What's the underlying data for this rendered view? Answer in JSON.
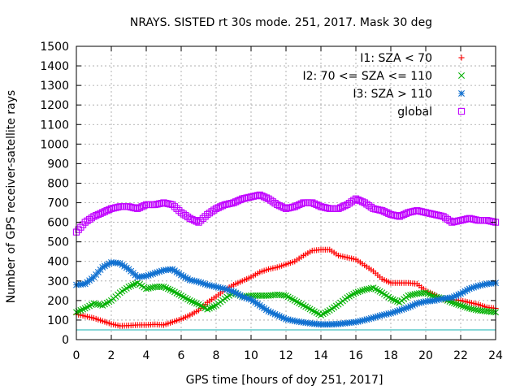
{
  "chart_data": {
    "type": "scatter",
    "title": "NRAYS. SISTED rt 30s mode. 251, 2017. Mask 30 deg",
    "xlabel": "GPS time [hours of doy 251, 2017]",
    "ylabel": "Number of GPS receiver-satellite rays",
    "xlim": [
      0,
      24
    ],
    "ylim": [
      0,
      1500
    ],
    "xticks": [
      "0",
      "2",
      "4",
      "6",
      "8",
      "10",
      "12",
      "14",
      "16",
      "18",
      "20",
      "22",
      "24"
    ],
    "yticks": [
      "0",
      "100",
      "200",
      "300",
      "400",
      "500",
      "600",
      "700",
      "800",
      "900",
      "1000",
      "1100",
      "1200",
      "1300",
      "1400",
      "1500"
    ],
    "grid": true,
    "legend_position": "top-right",
    "reference_line": {
      "y": 50,
      "color": "#40c0c0"
    },
    "series": [
      {
        "name": "I1: SZA < 70",
        "color": "#ff0000",
        "marker": "+",
        "x": [
          0,
          0.5,
          1,
          1.5,
          2,
          2.5,
          3,
          3.5,
          4,
          4.5,
          5,
          5.5,
          6,
          6.5,
          7,
          7.5,
          8,
          8.5,
          9,
          9.5,
          10,
          10.5,
          11,
          11.5,
          12,
          12.5,
          13,
          13.5,
          14,
          14.5,
          15,
          15.5,
          16,
          16.5,
          17,
          17.5,
          18,
          18.5,
          19,
          19.5,
          20,
          20.5,
          21,
          21.5,
          22,
          22.5,
          23,
          23.5,
          24
        ],
        "values": [
          130,
          120,
          110,
          95,
          80,
          70,
          72,
          75,
          75,
          78,
          75,
          90,
          105,
          125,
          150,
          190,
          220,
          255,
          280,
          300,
          320,
          345,
          360,
          370,
          385,
          400,
          430,
          455,
          460,
          460,
          430,
          420,
          410,
          380,
          350,
          310,
          290,
          290,
          290,
          285,
          250,
          230,
          205,
          205,
          200,
          190,
          180,
          165,
          160
        ]
      },
      {
        "name": "I2: 70 <= SZA <= 110",
        "color": "#00b000",
        "marker": "x",
        "x": [
          0,
          0.5,
          1,
          1.5,
          2,
          2.5,
          3,
          3.5,
          4,
          4.5,
          5,
          5.5,
          6,
          6.5,
          7,
          7.5,
          8,
          8.5,
          9,
          9.5,
          10,
          10.5,
          11,
          11.5,
          12,
          12.5,
          13,
          13.5,
          14,
          14.5,
          15,
          15.5,
          16,
          16.5,
          17,
          17.5,
          18,
          18.5,
          19,
          19.5,
          20,
          20.5,
          21,
          21.5,
          22,
          22.5,
          23,
          23.5,
          24
        ],
        "values": [
          140,
          160,
          185,
          175,
          200,
          240,
          270,
          290,
          260,
          270,
          270,
          250,
          225,
          200,
          180,
          155,
          175,
          210,
          240,
          220,
          225,
          225,
          225,
          230,
          225,
          200,
          175,
          150,
          125,
          150,
          180,
          215,
          240,
          255,
          265,
          240,
          210,
          190,
          225,
          235,
          240,
          220,
          210,
          190,
          175,
          160,
          150,
          145,
          140
        ]
      },
      {
        "name": "I3: SZA > 110",
        "color": "#1070d0",
        "marker": "*",
        "x": [
          0,
          0.5,
          1,
          1.5,
          2,
          2.5,
          3,
          3.5,
          4,
          4.5,
          5,
          5.5,
          6,
          6.5,
          7,
          7.5,
          8,
          8.5,
          9,
          9.5,
          10,
          10.5,
          11,
          11.5,
          12,
          12.5,
          13,
          13.5,
          14,
          14.5,
          15,
          15.5,
          16,
          16.5,
          17,
          17.5,
          18,
          18.5,
          19,
          19.5,
          20,
          20.5,
          21,
          21.5,
          22,
          22.5,
          23,
          23.5,
          24
        ],
        "values": [
          280,
          285,
          320,
          370,
          395,
          390,
          360,
          320,
          325,
          340,
          355,
          360,
          330,
          305,
          295,
          280,
          270,
          260,
          245,
          220,
          205,
          175,
          145,
          125,
          105,
          95,
          88,
          82,
          78,
          78,
          80,
          85,
          90,
          100,
          112,
          125,
          135,
          150,
          165,
          185,
          195,
          200,
          210,
          215,
          235,
          260,
          275,
          285,
          290
        ]
      },
      {
        "name": "global",
        "color": "#c000ff",
        "marker": "square",
        "x": [
          0,
          0.5,
          1,
          1.5,
          2,
          2.5,
          3,
          3.5,
          4,
          4.5,
          5,
          5.5,
          6,
          6.5,
          7,
          7.5,
          8,
          8.5,
          9,
          9.5,
          10,
          10.5,
          11,
          11.5,
          12,
          12.5,
          13,
          13.5,
          14,
          14.5,
          15,
          15.5,
          16,
          16.5,
          17,
          17.5,
          18,
          18.5,
          19,
          19.5,
          20,
          20.5,
          21,
          21.5,
          22,
          22.5,
          23,
          23.5,
          24
        ],
        "values": [
          550,
          600,
          630,
          650,
          670,
          680,
          680,
          670,
          690,
          690,
          700,
          690,
          650,
          620,
          600,
          640,
          670,
          690,
          700,
          720,
          730,
          740,
          720,
          690,
          670,
          680,
          700,
          700,
          680,
          670,
          670,
          690,
          720,
          700,
          670,
          660,
          640,
          630,
          650,
          660,
          650,
          640,
          630,
          600,
          610,
          620,
          610,
          610,
          600
        ]
      }
    ]
  }
}
